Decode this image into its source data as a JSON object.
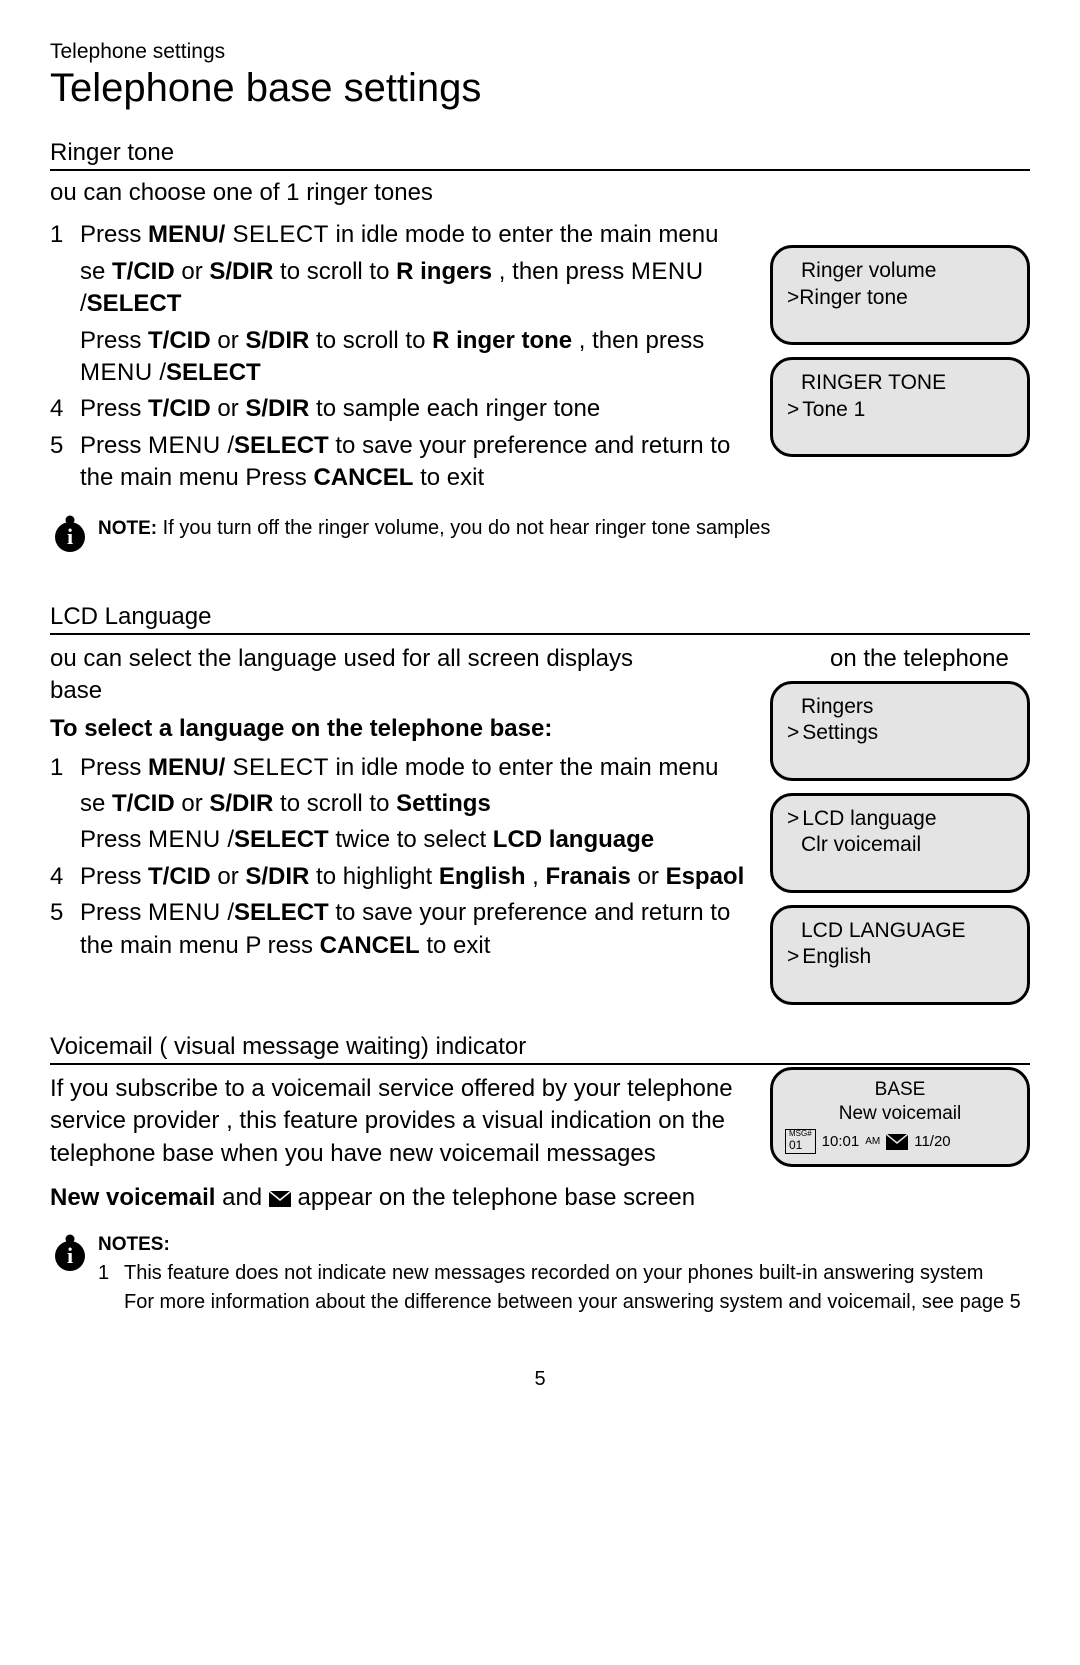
{
  "breadcrumb": "Telephone settings",
  "title": "Telephone base settings",
  "page_number": "5",
  "ringer": {
    "heading": "Ringer tone",
    "intro": "ou can choose one of 1 ringer tones",
    "steps": [
      {
        "n": "1",
        "parts": [
          "Press ",
          {
            "b": true,
            "t": "MENU/"
          },
          {
            "sc": true,
            "t": " SELECT"
          },
          " in idle mode to enter the main menu"
        ]
      },
      {
        "n": "",
        "parts": [
          "se   ",
          {
            "b": true,
            "t": "T/CID"
          },
          " or  ",
          {
            "b": true,
            "t": "S/DIR"
          },
          " to scroll to ",
          {
            "b": true,
            "t": "R  ingers"
          },
          " , then press ",
          {
            "sc": true,
            "t": "MENU"
          },
          " /",
          {
            "b": true,
            "t": "SELECT"
          }
        ],
        "sub": [
          "Press  ",
          {
            "b": true,
            "t": "T/CID"
          },
          " or  ",
          {
            "b": true,
            "t": "S/DIR"
          },
          " to scroll to ",
          {
            "b": true,
            "t": "R  inger tone"
          },
          " , then press ",
          {
            "sc": true,
            "t": "MENU"
          },
          " /",
          {
            "b": true,
            "t": "SELECT"
          }
        ]
      },
      {
        "n": "4",
        "parts": [
          "Press  ",
          {
            "b": true,
            "t": "T/CID"
          },
          " or  ",
          {
            "b": true,
            "t": "S/DIR"
          },
          " to sample each  ringer tone"
        ]
      },
      {
        "n": "5",
        "parts": [
          "Press ",
          {
            "sc": true,
            "t": "MENU"
          },
          " /",
          {
            "b": true,
            "t": "SELECT"
          },
          "  to save your preference and return to the main menu   Press ",
          {
            "b": true,
            "t": "CANCEL"
          },
          "  to exit"
        ]
      }
    ],
    "note": "If you turn off the ringer volume, you do not hear ringer tone samples",
    "lcd1": {
      "l1": "Ringer volume",
      "l2_pre": ">",
      "l2": "Ringer       tone"
    },
    "lcd2": {
      "l1": "RINGER TONE",
      "l2": "Tone 1"
    }
  },
  "lcdlang": {
    "heading": "LCD Language",
    "intro_a": "ou can select the language used for all screen displays",
    "intro_b": "on the telephone",
    "intro_c": "base",
    "sub": "To select a language on the telephone base:",
    "steps": [
      {
        "n": "1",
        "parts": [
          "Press ",
          {
            "b": true,
            "t": "MENU/"
          },
          {
            "sc": true,
            "t": " SELECT"
          },
          " in idle mode to enter the main menu"
        ]
      },
      {
        "n": "",
        "parts": [
          "se   ",
          {
            "b": true,
            "t": "T/CID"
          },
          " or  ",
          {
            "b": true,
            "t": "S/DIR"
          },
          " to scroll to   ",
          {
            "b": true,
            "t": "Settings"
          }
        ],
        "sub": [
          "Press ",
          {
            "sc": true,
            "t": "MENU"
          },
          " /",
          {
            "b": true,
            "t": "SELECT"
          },
          "  twice to select  ",
          {
            "b": true,
            "t": "LCD language"
          }
        ]
      },
      {
        "n": "4",
        "parts": [
          "Press  ",
          {
            "b": true,
            "t": "T/CID"
          },
          " or  ",
          {
            "b": true,
            "t": "S/DIR"
          },
          " to highlight ",
          {
            "b": true,
            "t": "English"
          },
          " , ",
          {
            "b": true,
            "t": "Franais"
          },
          " or ",
          {
            "b": true,
            "t": "Espaol"
          }
        ]
      },
      {
        "n": "5",
        "parts": [
          "Press ",
          {
            "sc": true,
            "t": "MENU"
          },
          " /",
          {
            "b": true,
            "t": "SELECT"
          },
          "  to save your preference and return to the main menu P  ress ",
          {
            "b": true,
            "t": "CANCEL"
          },
          "  to exit"
        ]
      }
    ],
    "lcd1": {
      "l1": "Ringers",
      "l2": "Settings"
    },
    "lcd2": {
      "l1": "LCD language",
      "l2": "Clr voicemail"
    },
    "lcd3": {
      "l1": "LCD LANGUAGE",
      "l2": "English"
    }
  },
  "vm": {
    "heading": "Voicemail ( visual message waiting) indicator",
    "para": "If you subscribe to a voicemail service offered by your telephone  service provider , this feature provides a visual indication  on the telephone base   when you have new voicemail messages",
    "line2_a": "New voicemail",
    "line2_b": "  and  ",
    "line2_c": " appear on the  telephone base  screen",
    "lcd": {
      "l1": "BASE",
      "l2": "New voicemail",
      "msg": "01",
      "time": "10:01",
      "ampm": "AM",
      "date": "11/20"
    },
    "notes_label": "NOTES:",
    "notes": [
      {
        "n": "1",
        "t": "This feature does not indicate new messages recorded on your phones built-in answering system"
      },
      {
        "n": "",
        "t": "For more information about the difference between your answering system and voicemail, see page 5"
      }
    ]
  }
}
